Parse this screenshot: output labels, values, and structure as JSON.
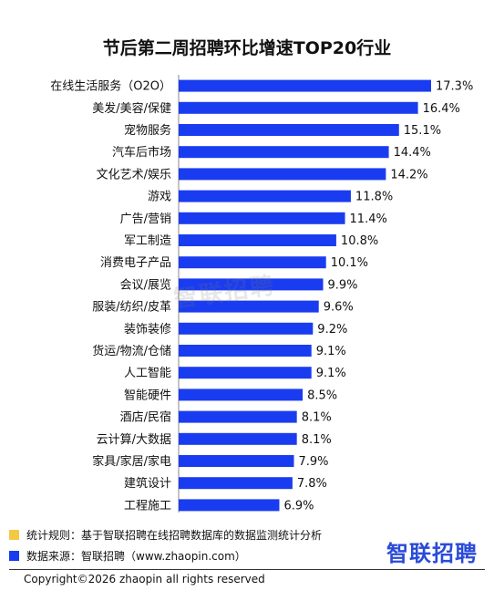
{
  "chart_data": {
    "type": "bar",
    "orientation": "horizontal",
    "title": "节后第二周招聘环比增速TOP20行业",
    "categories": [
      "在线生活服务（O2O）",
      "美发/美容/保健",
      "宠物服务",
      "汽车后市场",
      "文化艺术/娱乐",
      "游戏",
      "广告/营销",
      "军工制造",
      "消费电子产品",
      "会议/展览",
      "服装/纺织/皮革",
      "装饰装修",
      "货运/物流/仓储",
      "人工智能",
      "智能硬件",
      "酒店/民宿",
      "云计算/大数据",
      "家具/家居/家电",
      "建筑设计",
      "工程施工"
    ],
    "values": [
      17.3,
      16.4,
      15.1,
      14.4,
      14.2,
      11.8,
      11.4,
      10.8,
      10.1,
      9.9,
      9.6,
      9.2,
      9.1,
      9.1,
      8.5,
      8.1,
      8.1,
      7.9,
      7.8,
      6.9
    ],
    "value_labels": [
      "17.3%",
      "16.4%",
      "15.1%",
      "14.4%",
      "14.2%",
      "11.8%",
      "11.4%",
      "10.8%",
      "10.1%",
      "9.9%",
      "9.6%",
      "9.2%",
      "9.1%",
      "9.1%",
      "8.5%",
      "8.1%",
      "8.1%",
      "7.9%",
      "7.8%",
      "6.9%"
    ],
    "xlim": [
      0,
      17.3
    ],
    "bar_color": "#1a3cf0",
    "grid": false
  },
  "watermark": "智联招聘",
  "notes": {
    "rule": "统计规则：基于智联招聘在线招聘数据库的数据监测统计分析",
    "rule_color": "#f5c842",
    "source": "数据来源：智联招聘（www.zhaopin.com）",
    "source_color": "#1a3cf0"
  },
  "logo": "智联招聘",
  "copyright": "Copyright©2026 zhaopin all rights reserved"
}
